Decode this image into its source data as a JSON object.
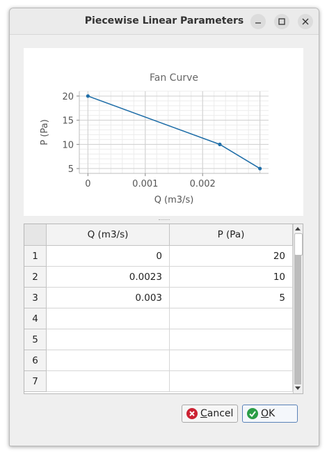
{
  "window": {
    "title": "Piecewise Linear Parameters",
    "controls": [
      "minimize",
      "maximize",
      "close"
    ]
  },
  "chart_data": {
    "type": "line",
    "title": "Fan Curve",
    "xlabel": "Q (m3/s)",
    "ylabel": "P (Pa)",
    "x": [
      0,
      0.0023,
      0.003
    ],
    "series": [
      {
        "values": [
          20,
          10,
          5
        ]
      }
    ],
    "xlim": [
      -0.00015,
      0.00315
    ],
    "ylim": [
      4,
      21
    ],
    "xticks": [
      0,
      0.001,
      0.002
    ],
    "xtick_labels": [
      "0",
      "0.001",
      "0.002"
    ],
    "yticks": [
      5,
      10,
      15,
      20
    ],
    "ytick_labels": [
      "5",
      "10",
      "15",
      "20"
    ],
    "grid": true,
    "line_color": "#1f6ea8"
  },
  "table": {
    "columns": [
      "Q (m3/s)",
      "P (Pa)"
    ],
    "row_numbers": [
      "1",
      "2",
      "3",
      "4",
      "5",
      "6",
      "7"
    ],
    "rows": [
      [
        "0",
        "20"
      ],
      [
        "0.0023",
        "10"
      ],
      [
        "0.003",
        "5"
      ],
      [
        "",
        ""
      ],
      [
        "",
        ""
      ],
      [
        "",
        ""
      ],
      [
        "",
        ""
      ]
    ]
  },
  "buttons": {
    "cancel": "Cancel",
    "ok": "OK"
  },
  "colors": {
    "cancel_icon": "#cc2233",
    "ok_icon": "#2a9d46"
  }
}
